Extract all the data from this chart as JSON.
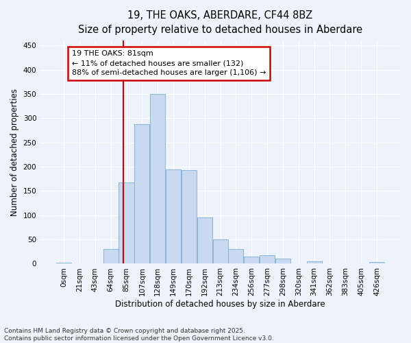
{
  "title_line1": "19, THE OAKS, ABERDARE, CF44 8BZ",
  "title_line2": "Size of property relative to detached houses in Aberdare",
  "xlabel": "Distribution of detached houses by size in Aberdare",
  "ylabel": "Number of detached properties",
  "bar_labels": [
    "0sqm",
    "21sqm",
    "43sqm",
    "64sqm",
    "85sqm",
    "107sqm",
    "128sqm",
    "149sqm",
    "170sqm",
    "192sqm",
    "213sqm",
    "234sqm",
    "256sqm",
    "277sqm",
    "298sqm",
    "320sqm",
    "341sqm",
    "362sqm",
    "383sqm",
    "405sqm",
    "426sqm"
  ],
  "bar_values": [
    2,
    0,
    0,
    30,
    167,
    287,
    350,
    195,
    193,
    95,
    50,
    30,
    15,
    18,
    10,
    0,
    5,
    0,
    0,
    0,
    3
  ],
  "bar_color": "#c8d9f0",
  "bar_edge_color": "#7aadd4",
  "annotation_line1": "19 THE OAKS: 81sqm",
  "annotation_line2": "← 11% of detached houses are smaller (132)",
  "annotation_line3": "88% of semi-detached houses are larger (1,106) →",
  "vline_color": "#cc0000",
  "box_color": "#cc0000",
  "ylim": [
    0,
    460
  ],
  "yticks": [
    0,
    50,
    100,
    150,
    200,
    250,
    300,
    350,
    400,
    450
  ],
  "footnote_line1": "Contains HM Land Registry data © Crown copyright and database right 2025.",
  "footnote_line2": "Contains public sector information licensed under the Open Government Licence v3.0.",
  "background_color": "#eef2fa",
  "grid_color": "#ffffff",
  "title_fontsize": 10.5,
  "subtitle_fontsize": 9.5,
  "axis_label_fontsize": 8.5,
  "tick_fontsize": 7.5,
  "annotation_fontsize": 8,
  "footnote_fontsize": 6.5
}
